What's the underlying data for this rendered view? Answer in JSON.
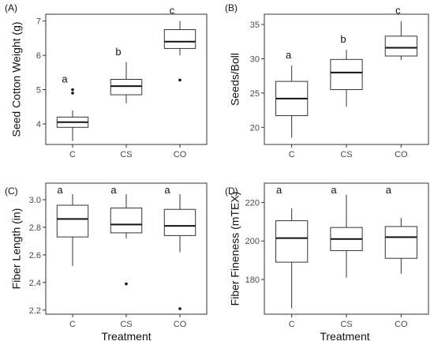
{
  "chart_data": [
    {
      "type": "box",
      "panel_label": "(A)",
      "ylabel": "Seed Cotton Weight (g)",
      "xlabel": "",
      "categories": [
        "C",
        "CS",
        "CO"
      ],
      "ylim": [
        3.4,
        7.2
      ],
      "yticks": [
        4,
        5,
        6,
        7
      ],
      "ytick_labels": [
        "4",
        "5",
        "6",
        "7"
      ],
      "boxes": [
        {
          "category": "C",
          "min": 3.5,
          "q1": 3.9,
          "median": 4.05,
          "q3": 4.2,
          "max": 4.4,
          "outliers": [
            4.9,
            5.0
          ],
          "letter": "a"
        },
        {
          "category": "CS",
          "min": 4.6,
          "q1": 4.85,
          "median": 5.1,
          "q3": 5.3,
          "max": 5.8,
          "outliers": [],
          "letter": "b"
        },
        {
          "category": "CO",
          "min": 6.0,
          "q1": 6.2,
          "median": 6.4,
          "q3": 6.75,
          "max": 7.0,
          "outliers": [
            5.28
          ],
          "letter": "c"
        }
      ]
    },
    {
      "type": "box",
      "panel_label": "(B)",
      "ylabel": "Seeds/Boll",
      "xlabel": "",
      "categories": [
        "C",
        "CS",
        "CO"
      ],
      "ylim": [
        17.5,
        36.5
      ],
      "yticks": [
        20,
        25,
        30,
        35
      ],
      "ytick_labels": [
        "20",
        "25",
        "30",
        "35"
      ],
      "boxes": [
        {
          "category": "C",
          "min": 18.5,
          "q1": 21.7,
          "median": 24.2,
          "q3": 26.7,
          "max": 29.0,
          "outliers": [],
          "letter": "a"
        },
        {
          "category": "CS",
          "min": 23.0,
          "q1": 25.5,
          "median": 28.0,
          "q3": 29.9,
          "max": 31.3,
          "outliers": [],
          "letter": "b"
        },
        {
          "category": "CO",
          "min": 29.8,
          "q1": 30.4,
          "median": 31.6,
          "q3": 33.3,
          "max": 35.5,
          "outliers": [],
          "letter": "c"
        }
      ]
    },
    {
      "type": "box",
      "panel_label": "(C)",
      "ylabel": "Fiber Length (in)",
      "xlabel": "Treatment",
      "categories": [
        "C",
        "CS",
        "CO"
      ],
      "ylim": [
        2.17,
        3.12
      ],
      "yticks": [
        2.2,
        2.4,
        2.6,
        2.8,
        3.0
      ],
      "ytick_labels": [
        "2.2",
        "2.4",
        "2.6",
        "2.8",
        "3.0"
      ],
      "boxes": [
        {
          "category": "C",
          "min": 2.52,
          "q1": 2.73,
          "median": 2.86,
          "q3": 2.96,
          "max": 3.04,
          "outliers": [],
          "letter": "a"
        },
        {
          "category": "CS",
          "min": 2.72,
          "q1": 2.76,
          "median": 2.82,
          "q3": 2.94,
          "max": 3.04,
          "outliers": [
            2.39
          ],
          "letter": "a"
        },
        {
          "category": "CO",
          "min": 2.62,
          "q1": 2.74,
          "median": 2.81,
          "q3": 2.93,
          "max": 3.04,
          "outliers": [
            2.21
          ],
          "letter": "a"
        }
      ]
    },
    {
      "type": "box",
      "panel_label": "(D)",
      "ylabel": "Fiber Fineness (mTEX)",
      "xlabel": "Treatment",
      "categories": [
        "C",
        "CS",
        "CO"
      ],
      "ylim": [
        162,
        230
      ],
      "yticks": [
        180,
        200,
        220
      ],
      "ytick_labels": [
        "180",
        "200",
        "220"
      ],
      "boxes": [
        {
          "category": "C",
          "min": 165,
          "q1": 189,
          "median": 201.5,
          "q3": 210.5,
          "max": 217,
          "outliers": [],
          "letter": "a"
        },
        {
          "category": "CS",
          "min": 181,
          "q1": 195,
          "median": 201,
          "q3": 207,
          "max": 224,
          "outliers": [],
          "letter": "a"
        },
        {
          "category": "CO",
          "min": 183,
          "q1": 191,
          "median": 202,
          "q3": 207.5,
          "max": 212,
          "outliers": [],
          "letter": "a"
        }
      ]
    }
  ]
}
